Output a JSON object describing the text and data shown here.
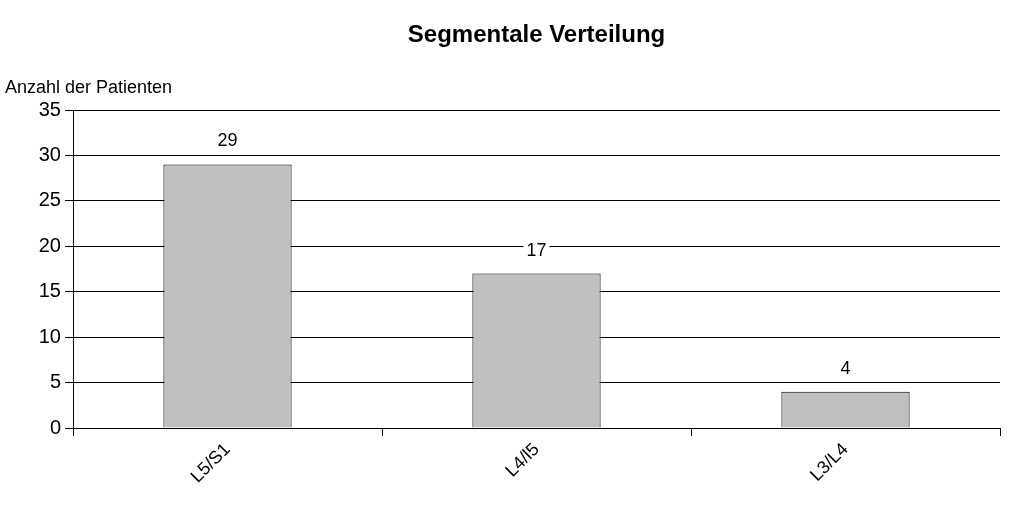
{
  "chart_data": {
    "type": "bar",
    "title": "Segmentale Verteilung",
    "ylabel": "Anzahl der Patienten",
    "categories": [
      "L5/S1",
      "L4/l5",
      "L3/L4"
    ],
    "values": [
      29,
      17,
      4
    ],
    "color": "#c0c0c0",
    "ylim": [
      0,
      35
    ],
    "yticks": [
      0,
      5,
      10,
      15,
      20,
      25,
      30,
      35
    ],
    "grid": "y",
    "data_labels": true,
    "legend": false
  }
}
